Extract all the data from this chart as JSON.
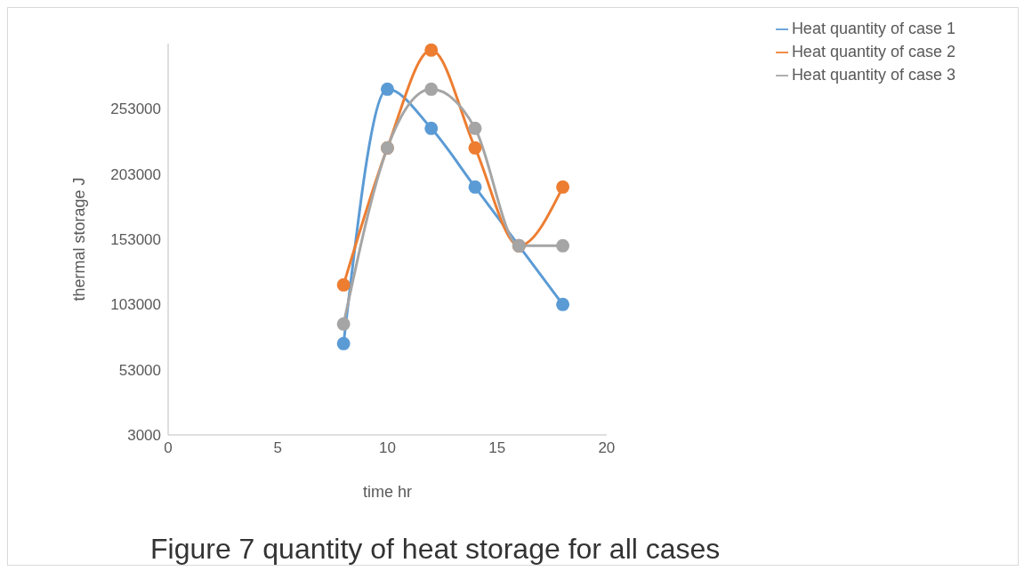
{
  "chart_data": {
    "type": "line",
    "xlabel": "time  hr",
    "ylabel": "thermal storage   J",
    "annotations": [
      "Figure 7 quantity of heat storage for all cases"
    ],
    "x": [
      8,
      10,
      12,
      14,
      16,
      18
    ],
    "series": [
      {
        "name": "Heat quantity of case 1",
        "color": "#5b9bd5",
        "values": [
          73000,
          268000,
          238000,
          193000,
          148000,
          103000
        ]
      },
      {
        "name": "Heat quantity of case 2",
        "color": "#ed7d31",
        "values": [
          118000,
          223000,
          298000,
          223000,
          148000,
          193000
        ]
      },
      {
        "name": "Heat quantity of case 3",
        "color": "#a5a5a5",
        "values": [
          88000,
          223000,
          268000,
          238000,
          148000,
          148000
        ]
      }
    ],
    "xlim": [
      0,
      20
    ],
    "xticks": [
      0,
      5,
      10,
      15,
      20
    ],
    "ylim": [
      3000,
      303000
    ],
    "yticks": [
      3000,
      53000,
      103000,
      153000,
      203000,
      253000
    ],
    "legend": "top right",
    "marker": "circle",
    "line_style": "solid"
  }
}
